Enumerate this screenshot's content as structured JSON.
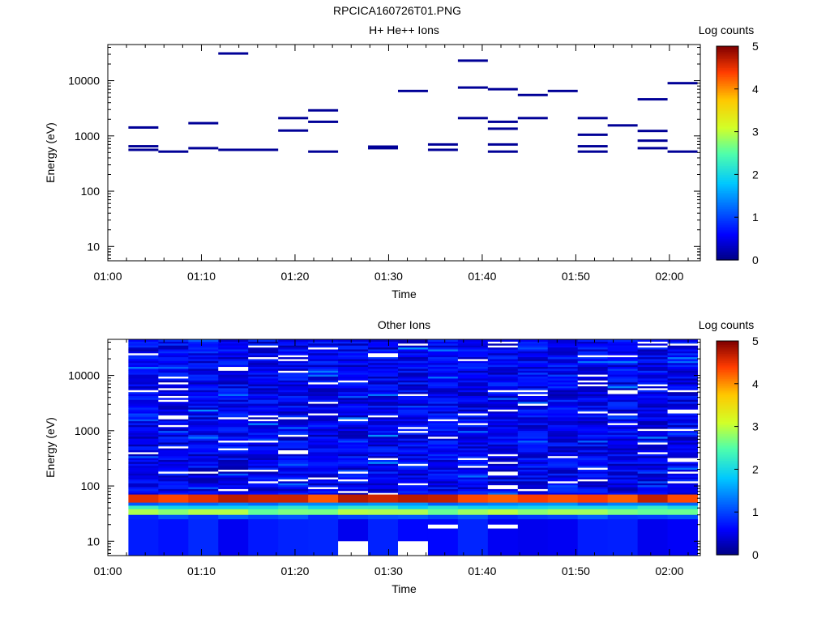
{
  "figure_title": "RPCICA160726T01.PNG",
  "chart_data": [
    {
      "type": "heatmap",
      "title": "H+ He++ Ions",
      "xlabel": "Time",
      "ylabel": "Energy (eV)",
      "x_tick_labels": [
        "01:00",
        "01:10",
        "01:20",
        "01:30",
        "01:40",
        "01:50",
        "02:00"
      ],
      "x_tick_minutes": [
        0,
        10,
        20,
        30,
        40,
        50,
        60
      ],
      "x_range_minutes": [
        0,
        63.3
      ],
      "y_scale": "log",
      "y_range": [
        5.5,
        45000
      ],
      "y_tick_labels": [
        "10",
        "100",
        "1000",
        "10000"
      ],
      "y_tick_values": [
        10,
        100,
        1000,
        10000
      ],
      "colorbar": {
        "title": "Log counts",
        "range": [
          0,
          5
        ],
        "tick_labels": [
          "0",
          "1",
          "2",
          "3",
          "4",
          "5"
        ]
      },
      "data_description": "Sparse single-count bins (log counts ~0) at these time/energy positions",
      "cells": [
        {
          "t0": 2.2,
          "t1": 5.4,
          "energy": 1420,
          "value": 0.1
        },
        {
          "t0": 2.2,
          "t1": 5.4,
          "energy": 650,
          "value": 0.1
        },
        {
          "t0": 2.2,
          "t1": 5.4,
          "energy": 560,
          "value": 0.1
        },
        {
          "t0": 5.4,
          "t1": 8.6,
          "energy": 520,
          "value": 0.1
        },
        {
          "t0": 8.6,
          "t1": 11.8,
          "energy": 1700,
          "value": 0.1
        },
        {
          "t0": 8.6,
          "t1": 11.8,
          "energy": 600,
          "value": 0.1
        },
        {
          "t0": 11.8,
          "t1": 15.0,
          "energy": 31000,
          "value": 0.1
        },
        {
          "t0": 11.8,
          "t1": 18.2,
          "energy": 560,
          "value": 0.1
        },
        {
          "t0": 18.2,
          "t1": 21.4,
          "energy": 2100,
          "value": 0.1
        },
        {
          "t0": 18.2,
          "t1": 21.4,
          "energy": 1250,
          "value": 0.1
        },
        {
          "t0": 21.4,
          "t1": 24.6,
          "energy": 2900,
          "value": 0.1
        },
        {
          "t0": 21.4,
          "t1": 24.6,
          "energy": 1800,
          "value": 0.1
        },
        {
          "t0": 21.4,
          "t1": 24.6,
          "energy": 520,
          "value": 0.1
        },
        {
          "t0": 27.8,
          "t1": 31.0,
          "energy": 640,
          "value": 0.1
        },
        {
          "t0": 27.8,
          "t1": 31.0,
          "energy": 600,
          "value": 0.1
        },
        {
          "t0": 31.0,
          "t1": 34.2,
          "energy": 6500,
          "value": 0.1
        },
        {
          "t0": 34.2,
          "t1": 37.4,
          "energy": 700,
          "value": 0.1
        },
        {
          "t0": 34.2,
          "t1": 37.4,
          "energy": 560,
          "value": 0.1
        },
        {
          "t0": 37.4,
          "t1": 40.6,
          "energy": 23000,
          "value": 0.1
        },
        {
          "t0": 37.4,
          "t1": 40.6,
          "energy": 7500,
          "value": 0.1
        },
        {
          "t0": 37.4,
          "t1": 40.6,
          "energy": 2100,
          "value": 0.1
        },
        {
          "t0": 40.6,
          "t1": 43.8,
          "energy": 7000,
          "value": 0.1
        },
        {
          "t0": 40.6,
          "t1": 43.8,
          "energy": 1800,
          "value": 0.1
        },
        {
          "t0": 40.6,
          "t1": 43.8,
          "energy": 1350,
          "value": 0.1
        },
        {
          "t0": 40.6,
          "t1": 43.8,
          "energy": 700,
          "value": 0.1
        },
        {
          "t0": 40.6,
          "t1": 43.8,
          "energy": 520,
          "value": 0.1
        },
        {
          "t0": 43.8,
          "t1": 47.0,
          "energy": 5500,
          "value": 0.1
        },
        {
          "t0": 43.8,
          "t1": 47.0,
          "energy": 2100,
          "value": 0.1
        },
        {
          "t0": 47.0,
          "t1": 50.2,
          "energy": 6500,
          "value": 0.1
        },
        {
          "t0": 50.2,
          "t1": 53.4,
          "energy": 2100,
          "value": 0.1
        },
        {
          "t0": 50.2,
          "t1": 53.4,
          "energy": 1050,
          "value": 0.1
        },
        {
          "t0": 50.2,
          "t1": 53.4,
          "energy": 650,
          "value": 0.1
        },
        {
          "t0": 50.2,
          "t1": 53.4,
          "energy": 520,
          "value": 0.1
        },
        {
          "t0": 53.4,
          "t1": 56.6,
          "energy": 1550,
          "value": 0.1
        },
        {
          "t0": 56.6,
          "t1": 59.8,
          "energy": 4600,
          "value": 0.1
        },
        {
          "t0": 56.6,
          "t1": 59.8,
          "energy": 1230,
          "value": 0.1
        },
        {
          "t0": 56.6,
          "t1": 59.8,
          "energy": 820,
          "value": 0.1
        },
        {
          "t0": 56.6,
          "t1": 59.8,
          "energy": 600,
          "value": 0.1
        },
        {
          "t0": 59.8,
          "t1": 63.0,
          "energy": 9000,
          "value": 0.1
        },
        {
          "t0": 59.8,
          "t1": 63.0,
          "energy": 520,
          "value": 0.1
        }
      ]
    },
    {
      "type": "heatmap",
      "title": "Other Ions",
      "xlabel": "Time",
      "ylabel": "Energy (eV)",
      "x_tick_labels": [
        "01:00",
        "01:10",
        "01:20",
        "01:30",
        "01:40",
        "01:50",
        "02:00"
      ],
      "x_tick_minutes": [
        0,
        10,
        20,
        30,
        40,
        50,
        60
      ],
      "x_range_minutes": [
        0,
        63.3
      ],
      "y_scale": "log",
      "y_range": [
        5.5,
        45000
      ],
      "y_tick_labels": [
        "10",
        "100",
        "1000",
        "10000"
      ],
      "y_tick_values": [
        10,
        100,
        1000,
        10000
      ],
      "colorbar": {
        "title": "Log counts",
        "range": [
          0,
          5
        ],
        "tick_labels": [
          "0",
          "1",
          "2",
          "3",
          "4",
          "5"
        ]
      },
      "data_description": "Dense spectrogram: 19 time bins from 01:02 to 02:03; background log counts ~0.3-0.9 above 100 eV; band at 10-30 eV ~0.8; band 30-40 eV ~2.8; band 50-70 eV ~4.5",
      "time_bins_minutes": [
        2.2,
        5.4,
        8.6,
        11.8,
        15.0,
        18.2,
        21.4,
        24.6,
        27.8,
        31.0,
        34.2,
        37.4,
        40.6,
        43.8,
        47.0,
        50.2,
        53.4,
        56.6,
        59.8,
        63.0
      ],
      "energy_bands": [
        {
          "e_low": 50,
          "e_high": 70,
          "value": 4.5
        },
        {
          "e_low": 44,
          "e_high": 50,
          "value": 1.3
        },
        {
          "e_low": 38,
          "e_high": 44,
          "value": 2.1
        },
        {
          "e_low": 30,
          "e_high": 38,
          "value": 2.8
        },
        {
          "e_low": 25,
          "e_high": 30,
          "value": 1.0
        },
        {
          "e_low": 5.5,
          "e_high": 25,
          "value": 0.7
        }
      ],
      "empty_bins_low_energy": [
        {
          "t0": 24.6,
          "t1": 27.8,
          "e_low": 5.5,
          "e_high": 10
        },
        {
          "t0": 31.0,
          "t1": 34.2,
          "e_low": 5.5,
          "e_high": 10
        },
        {
          "t0": 34.2,
          "t1": 37.4,
          "e_low": 17,
          "e_high": 20
        },
        {
          "t0": 40.6,
          "t1": 43.8,
          "e_low": 17,
          "e_high": 20
        }
      ],
      "upper_background": {
        "e_low": 70,
        "e_high": 45000,
        "value_min": 0.2,
        "value_max": 0.9,
        "empty_fraction": 0.07
      }
    }
  ]
}
